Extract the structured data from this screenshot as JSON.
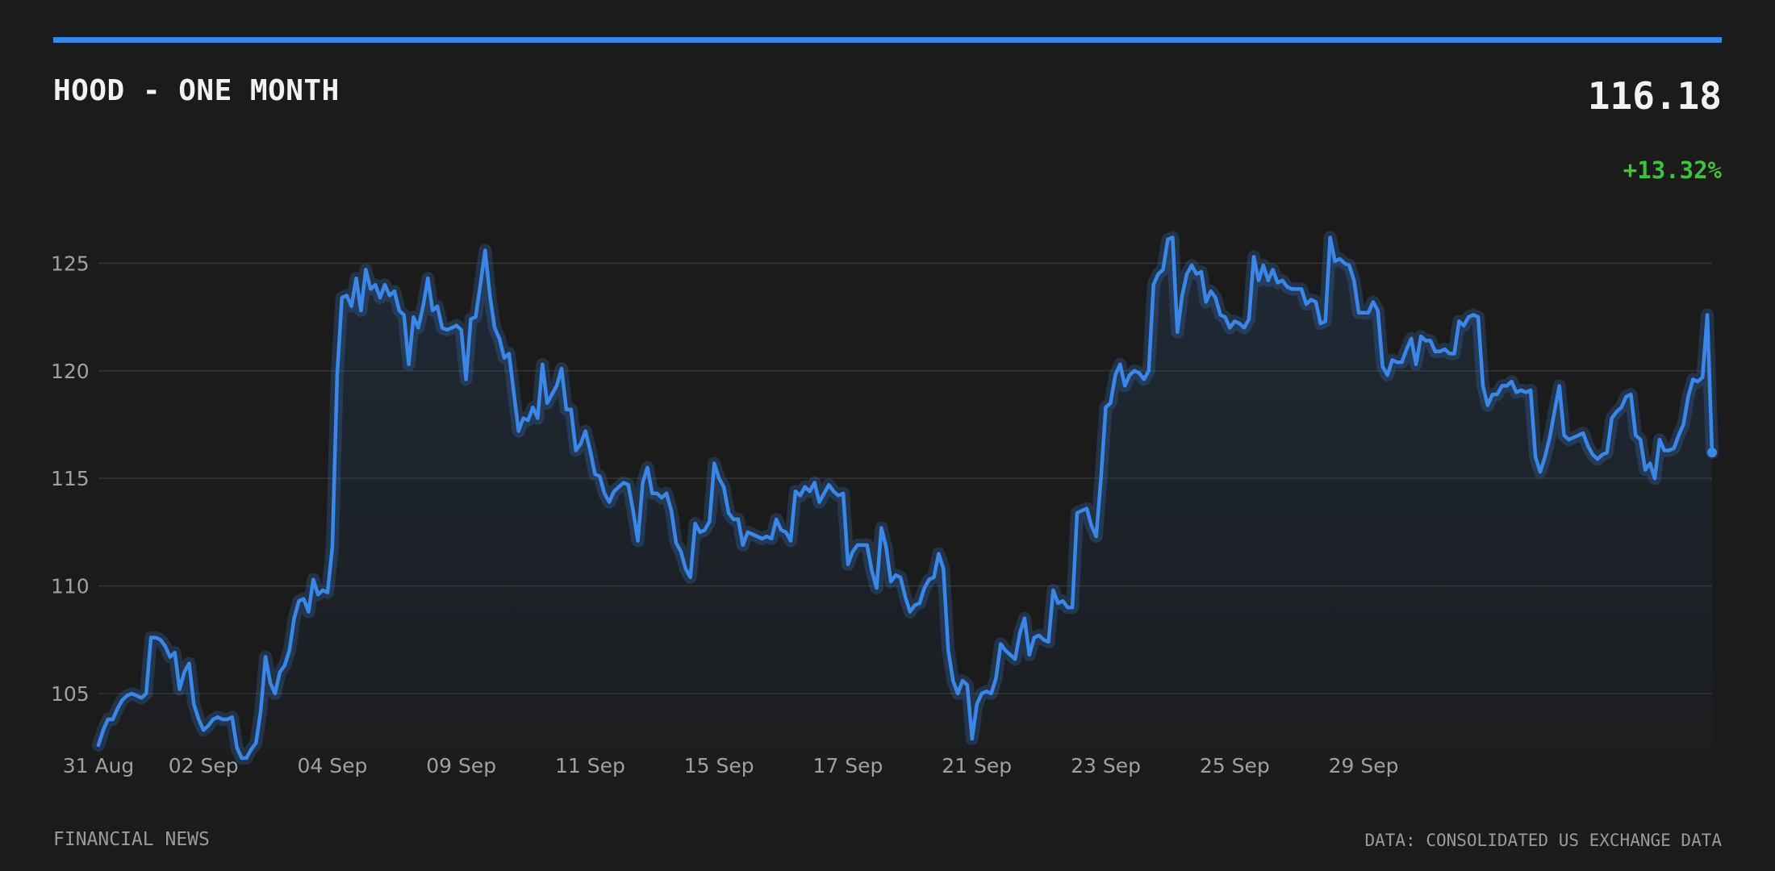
{
  "header": {
    "title": "HOOD - ONE MONTH",
    "price": "116.18",
    "change": "+13.32%"
  },
  "footer": {
    "source_left": "FINANCIAL NEWS",
    "source_right": "DATA: CONSOLIDATED US EXCHANGE DATA"
  },
  "colors": {
    "line": "#3a87e8",
    "positive": "#3ec23e",
    "grid": "#333333",
    "background": "#1b1b1b"
  },
  "chart_data": {
    "type": "area",
    "title": "HOOD - ONE MONTH",
    "xlabel": "",
    "ylabel": "",
    "ylim": [
      102,
      128.5
    ],
    "yticks": [
      105,
      110,
      115,
      120,
      125
    ],
    "grid": true,
    "x_tick_labels": [
      {
        "index": 0,
        "label": "31 Aug"
      },
      {
        "index": 22,
        "label": "02 Sep"
      },
      {
        "index": 49,
        "label": "04 Sep"
      },
      {
        "index": 76,
        "label": "09 Sep"
      },
      {
        "index": 103,
        "label": "11 Sep"
      },
      {
        "index": 130,
        "label": "15 Sep"
      },
      {
        "index": 157,
        "label": "17 Sep"
      },
      {
        "index": 184,
        "label": "21 Sep"
      },
      {
        "index": 211,
        "label": "23 Sep"
      },
      {
        "index": 238,
        "label": "25 Sep"
      },
      {
        "index": 265,
        "label": "29 Sep"
      }
    ],
    "series": [
      {
        "values": [
          102.6,
          103.3,
          103.8,
          103.8,
          104.3,
          104.7,
          104.9,
          105.0,
          104.9,
          104.8,
          105.0,
          107.6,
          107.6,
          107.5,
          107.2,
          106.7,
          106.9,
          105.2,
          106.0,
          106.4,
          104.5,
          103.8,
          103.3,
          103.5,
          103.8,
          103.9,
          103.8,
          103.8,
          103.9,
          102.5,
          102.0,
          102.0,
          102.4,
          102.7,
          104.2,
          106.7,
          105.5,
          105.0,
          106.0,
          106.3,
          107.0,
          108.5,
          109.3,
          109.4,
          108.8,
          110.3,
          109.6,
          109.8,
          109.7,
          111.8,
          119.8,
          123.4,
          123.5,
          123.0,
          124.3,
          122.8,
          124.7,
          123.8,
          124.0,
          123.4,
          124.0,
          123.5,
          123.7,
          122.8,
          122.6,
          120.3,
          122.5,
          122.0,
          123.0,
          124.3,
          122.8,
          123.0,
          122.0,
          121.9,
          122.0,
          122.1,
          121.9,
          119.6,
          122.4,
          122.5,
          124.0,
          125.6,
          123.5,
          122.0,
          121.5,
          120.6,
          120.8,
          119.0,
          117.2,
          117.8,
          117.7,
          118.3,
          117.8,
          120.3,
          118.5,
          118.9,
          119.3,
          120.1,
          118.2,
          118.2,
          116.3,
          116.6,
          117.2,
          116.3,
          115.2,
          115.1,
          114.3,
          113.9,
          114.4,
          114.6,
          114.8,
          114.7,
          113.5,
          112.1,
          114.8,
          115.5,
          114.3,
          114.3,
          114.1,
          114.3,
          113.5,
          112.0,
          111.6,
          110.8,
          110.4,
          112.9,
          112.5,
          112.6,
          113.0,
          115.7,
          115.0,
          114.6,
          113.4,
          113.1,
          113.1,
          111.9,
          112.5,
          112.4,
          112.3,
          112.2,
          112.3,
          112.2,
          113.1,
          112.6,
          112.5,
          112.1,
          114.4,
          114.2,
          114.6,
          114.4,
          114.8,
          113.9,
          114.3,
          114.7,
          114.4,
          114.2,
          114.3,
          111.0,
          111.6,
          111.9,
          111.9,
          111.9,
          110.7,
          109.9,
          112.7,
          111.8,
          110.2,
          110.5,
          110.4,
          109.5,
          108.8,
          109.1,
          109.2,
          109.9,
          110.3,
          110.4,
          111.5,
          110.8,
          107.0,
          105.6,
          105.0,
          105.6,
          105.4,
          102.9,
          104.5,
          105.0,
          105.1,
          105.0,
          105.7,
          107.3,
          107.0,
          106.8,
          106.6,
          107.8,
          108.5,
          106.8,
          107.6,
          107.7,
          107.5,
          107.4,
          109.8,
          109.2,
          109.3,
          109.0,
          109.0,
          113.4,
          113.5,
          113.6,
          112.8,
          112.3,
          115.0,
          118.3,
          118.5,
          119.8,
          120.3,
          119.3,
          119.8,
          120.0,
          119.9,
          119.6,
          120.0,
          124.0,
          124.5,
          124.7,
          126.1,
          126.2,
          121.8,
          123.5,
          124.5,
          124.9,
          124.5,
          124.6,
          123.2,
          123.7,
          123.4,
          122.6,
          122.5,
          122.0,
          122.3,
          122.2,
          122.0,
          122.4,
          125.3,
          124.2,
          124.9,
          124.2,
          124.7,
          124.1,
          124.2,
          123.9,
          123.8,
          123.8,
          123.8,
          123.1,
          123.3,
          123.2,
          122.2,
          122.3,
          126.2,
          125.1,
          125.2,
          125.0,
          124.9,
          124.2,
          122.7,
          122.7,
          122.7,
          123.2,
          122.8,
          120.2,
          119.8,
          120.5,
          120.4,
          120.4,
          121.0,
          121.5,
          120.3,
          121.6,
          121.4,
          121.4,
          120.9,
          120.9,
          121.0,
          120.8,
          120.8,
          122.3,
          122.1,
          122.5,
          122.6,
          122.5,
          119.3,
          118.4,
          118.9,
          118.9,
          119.3,
          119.3,
          119.5,
          119.0,
          119.1,
          119.0,
          119.1,
          116.0,
          115.3,
          116.0,
          116.9,
          118.1,
          119.3,
          117.0,
          116.8,
          116.9,
          117.0,
          117.1,
          116.5,
          116.1,
          115.9,
          116.1,
          116.2,
          117.8,
          118.1,
          118.3,
          118.8,
          118.9,
          117.0,
          116.8,
          115.4,
          115.7,
          115.0,
          116.8,
          116.3,
          116.3,
          116.4,
          117.0,
          117.5,
          118.8,
          119.6,
          119.5,
          119.7,
          122.6,
          116.2
        ]
      }
    ]
  }
}
